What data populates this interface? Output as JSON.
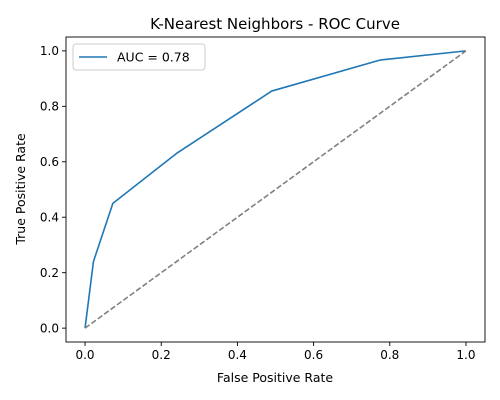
{
  "chart_data": {
    "type": "line",
    "title": "K-Nearest Neighbors - ROC Curve",
    "xlabel": "False Positive Rate",
    "ylabel": "True Positive Rate",
    "xlim": [
      -0.05,
      1.05
    ],
    "ylim": [
      -0.05,
      1.05
    ],
    "xticks": [
      0.0,
      0.2,
      0.4,
      0.6,
      0.8,
      1.0
    ],
    "yticks": [
      0.0,
      0.2,
      0.4,
      0.6,
      0.8,
      1.0
    ],
    "xtick_labels": [
      "0.0",
      "0.2",
      "0.4",
      "0.6",
      "0.8",
      "1.0"
    ],
    "ytick_labels": [
      "0.0",
      "0.2",
      "0.4",
      "0.6",
      "0.8",
      "1.0"
    ],
    "grid": false,
    "legend_position": "top-left",
    "series": [
      {
        "name": "AUC = 0.78",
        "color": "#1f77b4",
        "style": "solid",
        "x": [
          0.0,
          0.022,
          0.073,
          0.24,
          0.49,
          0.775,
          1.0
        ],
        "y": [
          0.0,
          0.24,
          0.45,
          0.63,
          0.855,
          0.967,
          1.0
        ]
      },
      {
        "color": "#808080",
        "style": "dashed",
        "x": [
          0.0,
          1.0
        ],
        "y": [
          0.0,
          1.0
        ]
      }
    ]
  }
}
